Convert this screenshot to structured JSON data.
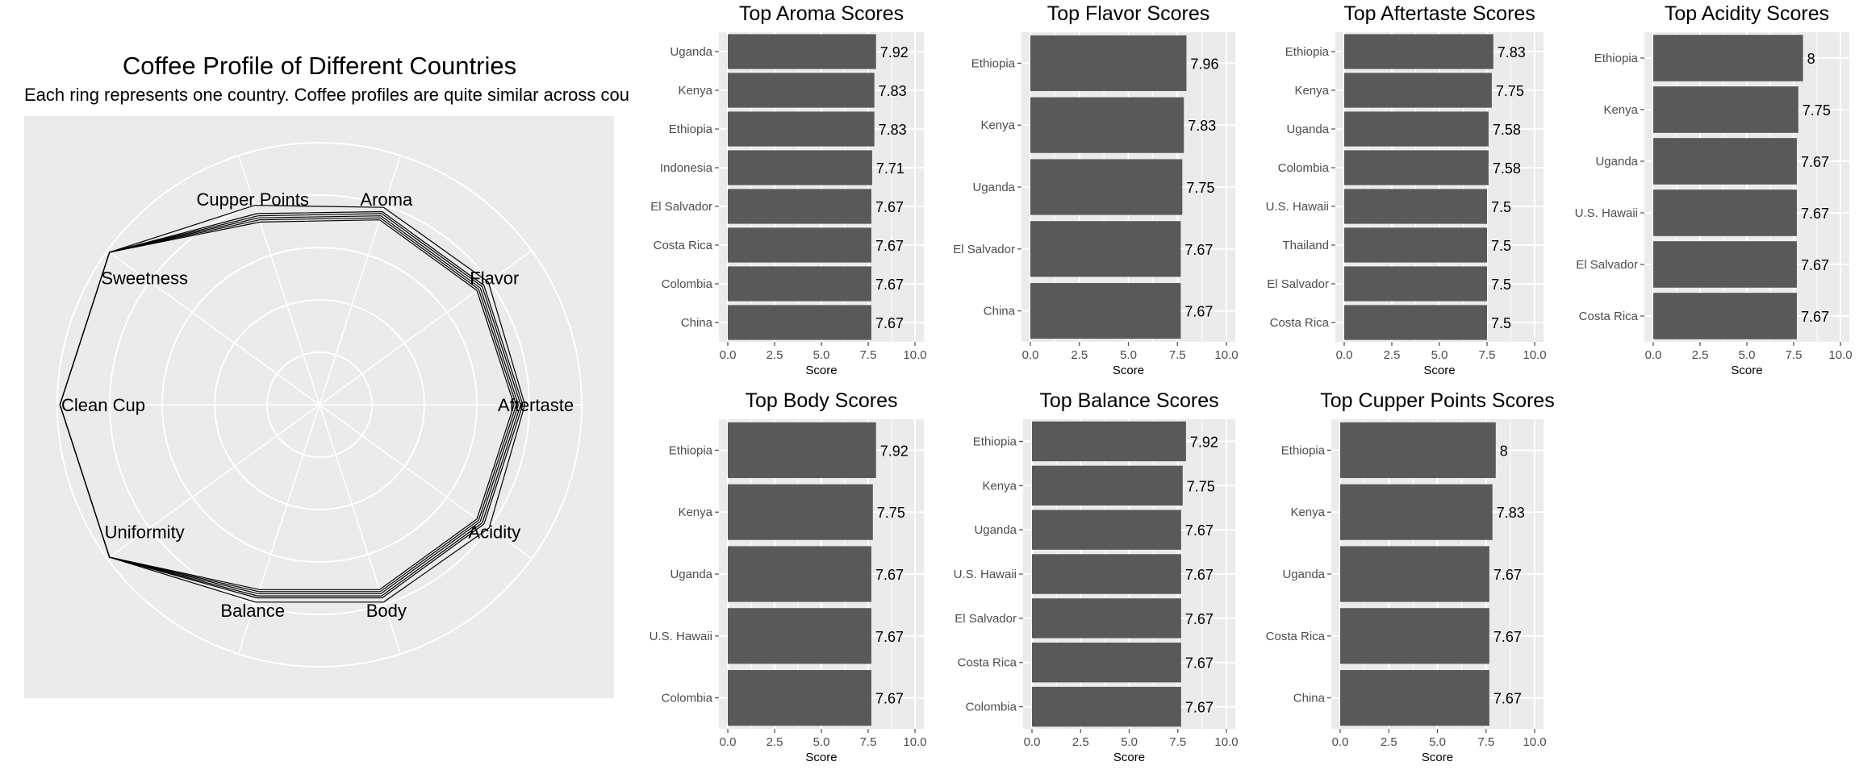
{
  "radar": {
    "title": "Coffee Profile of Different Countries",
    "subtitle": "Each ring represents one country. Coffee profiles are quite similar across cou",
    "axes": [
      "Aroma",
      "Flavor",
      "Aftertaste",
      "Acidity",
      "Body",
      "Balance",
      "Uniformity",
      "Clean Cup",
      "Sweetness",
      "Cupper Points"
    ],
    "rmax": 10,
    "rings": [
      2,
      4,
      6,
      8,
      10
    ],
    "grid": true,
    "colors": {
      "panel": "#ebebeb",
      "grid": "#ffffff",
      "line": "#000000"
    },
    "series": [
      [
        7.42,
        7.42,
        7.42,
        7.42,
        7.42,
        7.42,
        9.9,
        9.9,
        9.9,
        7.33
      ],
      [
        7.5,
        7.5,
        7.5,
        7.5,
        7.5,
        7.5,
        9.9,
        9.9,
        9.9,
        7.42
      ],
      [
        7.58,
        7.58,
        7.58,
        7.58,
        7.58,
        7.58,
        9.9,
        9.9,
        9.9,
        7.5
      ],
      [
        7.67,
        7.67,
        7.67,
        7.67,
        7.67,
        7.67,
        9.9,
        9.9,
        9.9,
        7.58
      ],
      [
        7.75,
        7.75,
        7.75,
        7.75,
        7.75,
        7.75,
        9.9,
        9.9,
        9.9,
        7.67
      ],
      [
        7.92,
        7.96,
        7.83,
        8.0,
        7.92,
        7.92,
        9.9,
        9.9,
        9.9,
        8.0
      ]
    ]
  },
  "chart_data": [
    {
      "type": "bar",
      "title": "Top Aroma Scores",
      "xlabel": "Score",
      "xlim": [
        0,
        10
      ],
      "ticks": [
        "0.0",
        "2.5",
        "5.0",
        "7.5",
        "10.0"
      ],
      "categories": [
        "Uganda",
        "Kenya",
        "Ethiopia",
        "Indonesia",
        "El Salvador",
        "Costa Rica",
        "Colombia",
        "China"
      ],
      "values": [
        7.92,
        7.83,
        7.83,
        7.71,
        7.67,
        7.67,
        7.67,
        7.67
      ],
      "labels": [
        "7.92",
        "7.83",
        "7.83",
        "7.71",
        "7.67",
        "7.67",
        "7.67",
        "7.67"
      ]
    },
    {
      "type": "bar",
      "title": "Top Flavor Scores",
      "xlabel": "Score",
      "xlim": [
        0,
        10
      ],
      "ticks": [
        "0.0",
        "2.5",
        "5.0",
        "7.5",
        "10.0"
      ],
      "categories": [
        "Ethiopia",
        "Kenya",
        "Uganda",
        "El Salvador",
        "China"
      ],
      "values": [
        7.96,
        7.83,
        7.75,
        7.67,
        7.67
      ],
      "labels": [
        "7.96",
        "7.83",
        "7.75",
        "7.67",
        "7.67"
      ]
    },
    {
      "type": "bar",
      "title": "Top Aftertaste Scores",
      "xlabel": "Score",
      "xlim": [
        0,
        10
      ],
      "ticks": [
        "0.0",
        "2.5",
        "5.0",
        "7.5",
        "10.0"
      ],
      "categories": [
        "Ethiopia",
        "Kenya",
        "Uganda",
        "Colombia",
        "U.S. Hawaii",
        "Thailand",
        "El Salvador",
        "Costa Rica"
      ],
      "values": [
        7.83,
        7.75,
        7.58,
        7.58,
        7.5,
        7.5,
        7.5,
        7.5
      ],
      "labels": [
        "7.83",
        "7.75",
        "7.58",
        "7.58",
        "7.5",
        "7.5",
        "7.5",
        "7.5"
      ]
    },
    {
      "type": "bar",
      "title": "Top Acidity Scores",
      "xlabel": "Score",
      "xlim": [
        0,
        10
      ],
      "ticks": [
        "0.0",
        "2.5",
        "5.0",
        "7.5",
        "10.0"
      ],
      "categories": [
        "Ethiopia",
        "Kenya",
        "Uganda",
        "U.S. Hawaii",
        "El Salvador",
        "Costa Rica"
      ],
      "values": [
        8,
        7.75,
        7.67,
        7.67,
        7.67,
        7.67
      ],
      "labels": [
        "8",
        "7.75",
        "7.67",
        "7.67",
        "7.67",
        "7.67"
      ]
    },
    {
      "type": "bar",
      "title": "Top Body Scores",
      "xlabel": "Score",
      "xlim": [
        0,
        10
      ],
      "ticks": [
        "0.0",
        "2.5",
        "5.0",
        "7.5",
        "10.0"
      ],
      "categories": [
        "Ethiopia",
        "Kenya",
        "Uganda",
        "U.S. Hawaii",
        "Colombia"
      ],
      "values": [
        7.92,
        7.75,
        7.67,
        7.67,
        7.67
      ],
      "labels": [
        "7.92",
        "7.75",
        "7.67",
        "7.67",
        "7.67"
      ]
    },
    {
      "type": "bar",
      "title": "Top Balance Scores",
      "xlabel": "Score",
      "xlim": [
        0,
        10
      ],
      "ticks": [
        "0.0",
        "2.5",
        "5.0",
        "7.5",
        "10.0"
      ],
      "categories": [
        "Ethiopia",
        "Kenya",
        "Uganda",
        "U.S. Hawaii",
        "El Salvador",
        "Costa Rica",
        "Colombia"
      ],
      "values": [
        7.92,
        7.75,
        7.67,
        7.67,
        7.67,
        7.67,
        7.67
      ],
      "labels": [
        "7.92",
        "7.75",
        "7.67",
        "7.67",
        "7.67",
        "7.67",
        "7.67"
      ]
    },
    {
      "type": "bar",
      "title": "Top Cupper Points Scores",
      "xlabel": "Score",
      "xlim": [
        0,
        10
      ],
      "ticks": [
        "0.0",
        "2.5",
        "5.0",
        "7.5",
        "10.0"
      ],
      "categories": [
        "Ethiopia",
        "Kenya",
        "Uganda",
        "Costa Rica",
        "China"
      ],
      "values": [
        8,
        7.83,
        7.67,
        7.67,
        7.67
      ],
      "labels": [
        "8",
        "7.83",
        "7.67",
        "7.67",
        "7.67"
      ]
    }
  ],
  "colors": {
    "panel": "#ebebeb",
    "grid": "#ffffff",
    "bar": "#595959",
    "text": "#000000",
    "axis": "#4d4d4d"
  }
}
